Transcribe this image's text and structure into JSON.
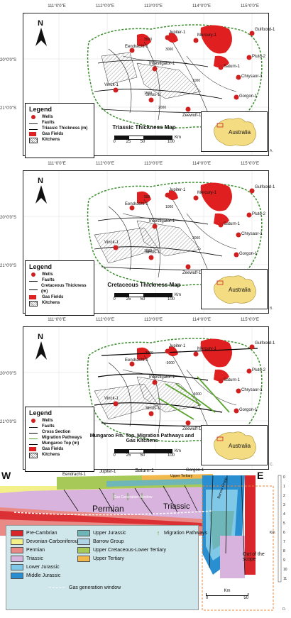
{
  "lon_ticks": [
    "111°0'0\"E",
    "112°0'0\"E",
    "113°0'0\"E",
    "114°0'0\"E",
    "115°0'0\"E"
  ],
  "lat_ticks": [
    "20°0'0\"S",
    "21°0'0\"S"
  ],
  "north_label": "N",
  "wells": [
    "Mercury-1",
    "Jupiter-1",
    "Eendracht-1",
    "Saturn-1",
    "Pluto-2",
    "Chrysaor-1",
    "Gorgon-1",
    "Investigator-1",
    "Vinck-1",
    "Sirius-1",
    "Zeewulf-1",
    "Leyden-1B",
    "Gulfoord-1"
  ],
  "panel_a": {
    "title": "Triassic Thickness Map",
    "letter": "A.",
    "legend": {
      "title": "Legend",
      "items": [
        "Wells",
        "Faults",
        "Triassic Thickness (m)",
        "Gas Fields",
        "Kitchens"
      ]
    },
    "contours": [
      "3000",
      "3000",
      "1000",
      "1500",
      "2000"
    ]
  },
  "panel_b": {
    "title": "Cretaceous Thickness Map",
    "letter": "B.",
    "legend": {
      "title": "Legend",
      "items": [
        "Wells",
        "Faults",
        "Cretaceous Thickness (m)",
        "Gas Fields",
        "Kitchens"
      ]
    },
    "contours": [
      "500",
      "1000",
      "2000",
      "1000"
    ]
  },
  "panel_c": {
    "title": "Mungaroo Fm. Top, Migration Pathways and Gas Kitchens",
    "letter": "C.",
    "legend": {
      "title": "Legend",
      "items": [
        "Wells",
        "Faults",
        "Cross Section",
        "Migration Pathways",
        "Mungaroo Top (m)",
        "Gas Fields",
        "Kitchens"
      ]
    },
    "contours": [
      "-3000",
      "-3000",
      "-3000"
    ]
  },
  "inset_label": "Australia",
  "scale": {
    "unit": "Km",
    "ticks": [
      "0",
      "25",
      "50",
      "100"
    ]
  },
  "section": {
    "west": "W",
    "east": "E",
    "wells": [
      "Eendracht-1",
      "Jupiter-1",
      "Saturn-1",
      "Gorgon-1"
    ],
    "labels": {
      "permian": "Permian",
      "triassic": "Triassic",
      "gas_window": "Gas Generation Window",
      "upper_tertiary": "Upper Tertiary",
      "barrow": "Barrow Group",
      "out_scope": "Out of the scope"
    },
    "depth_unit": "Km",
    "depth_ticks": [
      "0",
      "1",
      "2",
      "3",
      "4",
      "5",
      "6",
      "7",
      "8",
      "9",
      "10",
      "11"
    ],
    "scale": {
      "unit": "Km",
      "ticks": [
        "0",
        "50"
      ]
    },
    "letter": "D.",
    "legend": [
      {
        "label": "Pre-Cambrian",
        "color": "#d9262b"
      },
      {
        "label": "Devonian-Carboniferous",
        "color": "#f3f08a"
      },
      {
        "label": "Permian",
        "color": "#e98a86"
      },
      {
        "label": "Triassic",
        "color": "#d8b3dd"
      },
      {
        "label": "Lower Jurassic",
        "color": "#7fc8e8"
      },
      {
        "label": "Middle Jurassic",
        "color": "#2a8fd1"
      },
      {
        "label": "Upper Jurassic",
        "color": "#6fb6b9"
      },
      {
        "label": "Barrow Group",
        "color": "#aed4e6"
      },
      {
        "label": "Upper Cretaceous-Lower Tertiary",
        "color": "#a7c957"
      },
      {
        "label": "Upper Tertiary",
        "color": "#f2b84b"
      },
      {
        "label": "Migration Pathways",
        "color": "#5aa32e"
      },
      {
        "label": "Gas generation window",
        "color": "#ffffff"
      }
    ]
  }
}
